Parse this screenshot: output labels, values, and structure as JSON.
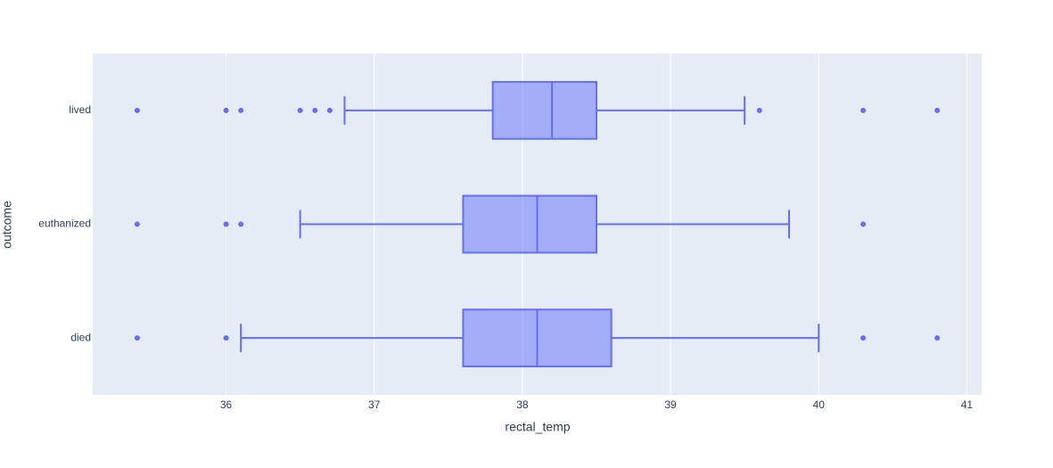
{
  "chart_data": {
    "type": "box",
    "orientation": "horizontal",
    "xlabel": "rectal_temp",
    "ylabel": "outcome",
    "categories": [
      "died",
      "euthanized",
      "lived"
    ],
    "color": "#636efa",
    "grid": true,
    "xlim": [
      35.1,
      41.1
    ],
    "xticks": [
      36,
      37,
      38,
      39,
      40,
      41
    ],
    "boxes": [
      {
        "min": 36.1,
        "q1": 37.6,
        "median": 38.1,
        "q3": 38.6,
        "max": 40.0,
        "outliers": [
          35.4,
          36.0,
          40.3,
          40.8
        ]
      },
      {
        "min": 36.5,
        "q1": 37.6,
        "median": 38.1,
        "q3": 38.5,
        "max": 39.8,
        "outliers": [
          35.4,
          36.0,
          36.1,
          40.3
        ]
      },
      {
        "min": 36.8,
        "q1": 37.8,
        "median": 38.2,
        "q3": 38.5,
        "max": 39.5,
        "outliers": [
          35.4,
          36.0,
          36.1,
          36.5,
          36.6,
          36.7,
          39.6,
          40.3,
          40.8
        ]
      }
    ]
  }
}
